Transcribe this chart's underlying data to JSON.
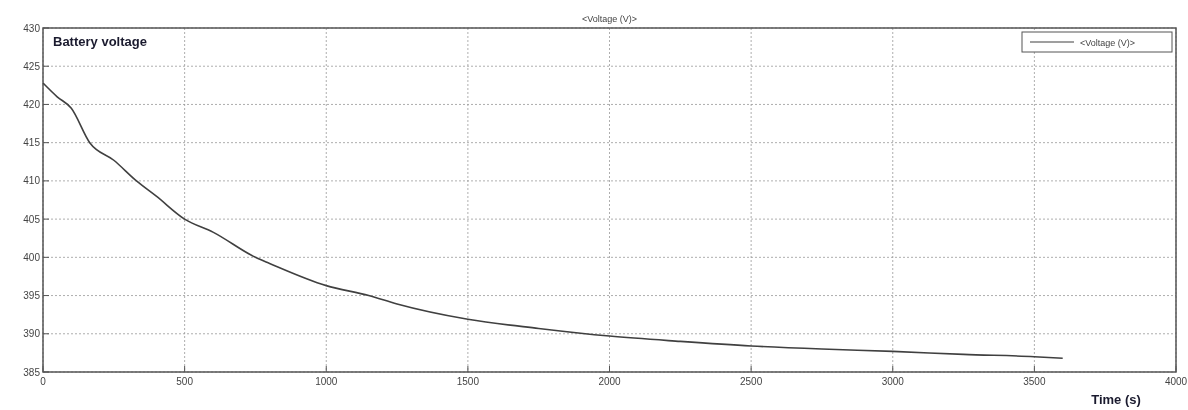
{
  "chart_data": {
    "type": "line",
    "title": "<Voltage (V)>",
    "xlabel": "Time (s)",
    "annotations": [
      "Battery voltage"
    ],
    "x": [
      0,
      50,
      100,
      165,
      250,
      330,
      400,
      500,
      600,
      750,
      800,
      1000,
      1150,
      1250,
      1500,
      1750,
      2000,
      2250,
      2500,
      2750,
      3000,
      3250,
      3500,
      3600
    ],
    "series": [
      {
        "name": "<Voltage (V)>",
        "color": "#404040",
        "values": [
          422.8,
          421,
          419.5,
          415,
          412.7,
          410,
          408,
          405,
          403.3,
          400,
          399.2,
          396.3,
          395,
          393.9,
          391.9,
          390.7,
          389.7,
          389.0,
          388.4,
          388.0,
          387.7,
          387.3,
          387.0,
          386.8
        ]
      }
    ],
    "xlim": [
      0,
      4000
    ],
    "xticks": [
      0,
      500,
      1000,
      1500,
      2000,
      2500,
      3000,
      3500,
      4000
    ],
    "ylim": [
      385,
      430
    ],
    "yticks": [
      385,
      390,
      395,
      400,
      405,
      410,
      415,
      420,
      425,
      430
    ],
    "grid": true,
    "legend": "top right",
    "line_style": "solid",
    "marker": "none"
  }
}
